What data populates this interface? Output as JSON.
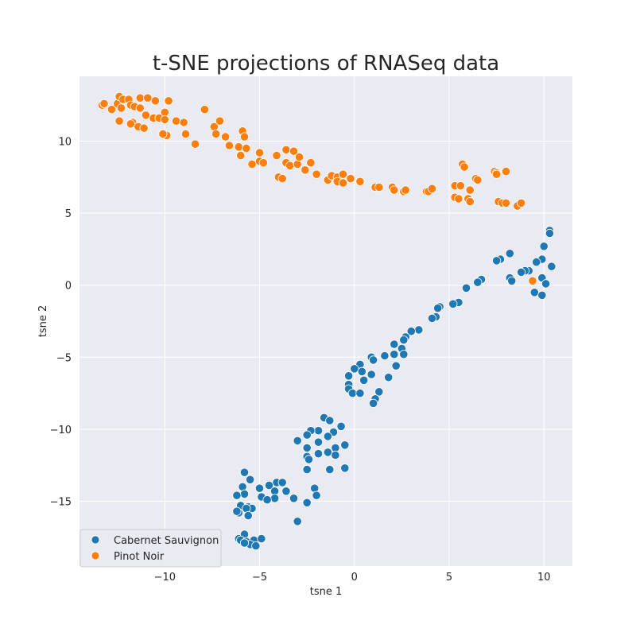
{
  "chart_data": {
    "type": "scatter",
    "title": "t-SNE projections of RNASeq data",
    "xlabel": "tsne 1",
    "ylabel": "tsne 2",
    "xlim": [
      -14.5,
      11.5
    ],
    "ylim": [
      -19.5,
      14.5
    ],
    "xticks": [
      -10,
      -5,
      0,
      5,
      10
    ],
    "yticks": [
      -15,
      -10,
      -5,
      0,
      5,
      10
    ],
    "xtick_labels": [
      "−10",
      "−5",
      "0",
      "5",
      "10"
    ],
    "ytick_labels": [
      "−15",
      "−10",
      "−5",
      "0",
      "5",
      "10"
    ],
    "grid": true,
    "legend_position": "lower-left",
    "background": "#eaeaf2",
    "series": [
      {
        "name": "Cabernet Sauvignon",
        "color": "#1f77b4",
        "points": [
          [
            10.3,
            3.8
          ],
          [
            10.3,
            3.6
          ],
          [
            10.0,
            2.7
          ],
          [
            9.9,
            1.8
          ],
          [
            9.6,
            1.6
          ],
          [
            10.4,
            1.3
          ],
          [
            8.2,
            2.2
          ],
          [
            7.7,
            1.8
          ],
          [
            7.5,
            1.7
          ],
          [
            9.2,
            1.0
          ],
          [
            9.0,
            1.0
          ],
          [
            8.8,
            0.9
          ],
          [
            8.2,
            0.5
          ],
          [
            8.3,
            0.3
          ],
          [
            9.9,
            0.5
          ],
          [
            10.1,
            0.1
          ],
          [
            9.5,
            -0.5
          ],
          [
            9.9,
            -0.7
          ],
          [
            6.7,
            0.4
          ],
          [
            6.5,
            0.2
          ],
          [
            5.9,
            -0.2
          ],
          [
            5.5,
            -1.2
          ],
          [
            5.2,
            -1.3
          ],
          [
            4.5,
            -1.5
          ],
          [
            4.4,
            -1.6
          ],
          [
            4.3,
            -2.2
          ],
          [
            4.1,
            -2.3
          ],
          [
            3.4,
            -3.1
          ],
          [
            3.0,
            -3.2
          ],
          [
            2.7,
            -3.6
          ],
          [
            2.6,
            -3.8
          ],
          [
            2.1,
            -4.1
          ],
          [
            2.5,
            -4.4
          ],
          [
            2.6,
            -4.8
          ],
          [
            2.1,
            -4.8
          ],
          [
            2.2,
            -5.6
          ],
          [
            1.6,
            -4.9
          ],
          [
            0.9,
            -5.0
          ],
          [
            1.0,
            -5.2
          ],
          [
            0.3,
            -5.5
          ],
          [
            0.0,
            -5.8
          ],
          [
            0.4,
            -6.0
          ],
          [
            0.9,
            -6.2
          ],
          [
            -0.3,
            -6.3
          ],
          [
            0.5,
            -6.6
          ],
          [
            -0.3,
            -6.9
          ],
          [
            -0.3,
            -7.2
          ],
          [
            -0.1,
            -7.5
          ],
          [
            0.3,
            -7.5
          ],
          [
            1.8,
            -6.4
          ],
          [
            1.3,
            -7.4
          ],
          [
            1.1,
            -7.9
          ],
          [
            1.0,
            -8.2
          ],
          [
            -1.6,
            -9.2
          ],
          [
            -1.3,
            -9.4
          ],
          [
            -0.7,
            -9.8
          ],
          [
            -1.1,
            -10.2
          ],
          [
            -1.9,
            -10.1
          ],
          [
            -2.3,
            -10.1
          ],
          [
            -2.5,
            -10.4
          ],
          [
            -1.4,
            -10.5
          ],
          [
            -3.0,
            -10.8
          ],
          [
            -1.9,
            -10.9
          ],
          [
            -0.5,
            -11.1
          ],
          [
            -1.0,
            -11.3
          ],
          [
            -2.5,
            -11.3
          ],
          [
            -1.4,
            -11.6
          ],
          [
            -1.9,
            -11.7
          ],
          [
            -2.5,
            -11.9
          ],
          [
            -1.0,
            -11.8
          ],
          [
            -2.4,
            -12.1
          ],
          [
            -2.5,
            -12.8
          ],
          [
            -1.3,
            -12.8
          ],
          [
            -0.5,
            -12.7
          ],
          [
            -5.8,
            -13.0
          ],
          [
            -5.5,
            -13.5
          ],
          [
            -4.1,
            -13.7
          ],
          [
            -3.8,
            -13.7
          ],
          [
            -4.5,
            -13.9
          ],
          [
            -5.0,
            -14.1
          ],
          [
            -5.9,
            -14.0
          ],
          [
            -2.1,
            -14.1
          ],
          [
            -4.2,
            -14.3
          ],
          [
            -3.6,
            -14.3
          ],
          [
            -5.8,
            -14.5
          ],
          [
            -6.2,
            -14.6
          ],
          [
            -4.9,
            -14.7
          ],
          [
            -4.2,
            -14.8
          ],
          [
            -4.6,
            -14.9
          ],
          [
            -3.2,
            -14.8
          ],
          [
            -2.0,
            -14.6
          ],
          [
            -2.5,
            -15.1
          ],
          [
            -6.0,
            -15.3
          ],
          [
            -5.6,
            -15.4
          ],
          [
            -5.4,
            -15.5
          ],
          [
            -5.7,
            -15.5
          ],
          [
            -6.1,
            -15.8
          ],
          [
            -6.2,
            -15.7
          ],
          [
            -5.6,
            -16.0
          ],
          [
            -3.0,
            -16.4
          ],
          [
            -6.1,
            -17.6
          ],
          [
            -5.8,
            -17.3
          ],
          [
            -6.0,
            -17.7
          ],
          [
            -5.7,
            -17.8
          ],
          [
            -5.3,
            -17.7
          ],
          [
            -4.9,
            -17.6
          ],
          [
            -5.5,
            -18.0
          ],
          [
            -5.2,
            -18.1
          ],
          [
            -5.8,
            -17.9
          ]
        ]
      },
      {
        "name": "Pinot Noir",
        "color": "#ff7f0e",
        "points": [
          [
            -13.3,
            12.5
          ],
          [
            -13.2,
            12.6
          ],
          [
            -12.8,
            12.2
          ],
          [
            -12.5,
            12.6
          ],
          [
            -12.4,
            13.1
          ],
          [
            -12.2,
            12.9
          ],
          [
            -12.3,
            12.3
          ],
          [
            -11.9,
            12.9
          ],
          [
            -11.8,
            12.5
          ],
          [
            -11.6,
            12.4
          ],
          [
            -11.7,
            11.3
          ],
          [
            -11.8,
            11.2
          ],
          [
            -11.4,
            11.0
          ],
          [
            -11.3,
            13.0
          ],
          [
            -11.3,
            12.3
          ],
          [
            -10.9,
            13.0
          ],
          [
            -11.0,
            11.8
          ],
          [
            -11.1,
            10.9
          ],
          [
            -10.6,
            11.6
          ],
          [
            -10.5,
            12.8
          ],
          [
            -10.3,
            11.6
          ],
          [
            -10.0,
            12.0
          ],
          [
            -10.0,
            11.5
          ],
          [
            -9.8,
            12.8
          ],
          [
            -9.9,
            10.4
          ],
          [
            -10.1,
            10.5
          ],
          [
            -12.4,
            11.4
          ],
          [
            -9.4,
            11.4
          ],
          [
            -9.0,
            11.3
          ],
          [
            -8.9,
            10.5
          ],
          [
            -8.4,
            9.8
          ],
          [
            -7.9,
            12.2
          ],
          [
            -7.4,
            11.0
          ],
          [
            -7.3,
            10.5
          ],
          [
            -7.1,
            11.4
          ],
          [
            -6.8,
            10.3
          ],
          [
            -6.6,
            9.7
          ],
          [
            -6.1,
            9.6
          ],
          [
            -6.0,
            9.0
          ],
          [
            -5.9,
            10.7
          ],
          [
            -5.8,
            10.3
          ],
          [
            -5.7,
            9.5
          ],
          [
            -5.4,
            8.4
          ],
          [
            -5.0,
            9.2
          ],
          [
            -5.0,
            8.6
          ],
          [
            -4.8,
            8.5
          ],
          [
            -4.1,
            9.0
          ],
          [
            -4.0,
            7.5
          ],
          [
            -3.8,
            7.4
          ],
          [
            -3.6,
            9.4
          ],
          [
            -3.6,
            8.5
          ],
          [
            -3.4,
            8.3
          ],
          [
            -3.2,
            9.3
          ],
          [
            -3.0,
            8.4
          ],
          [
            -2.9,
            8.9
          ],
          [
            -2.6,
            8.0
          ],
          [
            -2.3,
            8.5
          ],
          [
            -2.0,
            7.7
          ],
          [
            -1.4,
            7.3
          ],
          [
            -1.2,
            7.6
          ],
          [
            -0.9,
            7.5
          ],
          [
            -0.9,
            7.2
          ],
          [
            -0.6,
            7.1
          ],
          [
            -0.6,
            7.7
          ],
          [
            -0.2,
            7.4
          ],
          [
            0.3,
            7.2
          ],
          [
            1.1,
            6.8
          ],
          [
            1.3,
            6.8
          ],
          [
            2.0,
            6.8
          ],
          [
            2.1,
            6.6
          ],
          [
            2.6,
            6.5
          ],
          [
            2.7,
            6.6
          ],
          [
            3.8,
            6.5
          ],
          [
            3.9,
            6.5
          ],
          [
            4.1,
            6.7
          ],
          [
            5.3,
            6.9
          ],
          [
            5.3,
            6.1
          ],
          [
            5.6,
            6.9
          ],
          [
            5.5,
            6.0
          ],
          [
            5.7,
            8.4
          ],
          [
            5.8,
            8.2
          ],
          [
            6.1,
            6.6
          ],
          [
            6.0,
            6.0
          ],
          [
            6.1,
            5.8
          ],
          [
            6.4,
            7.4
          ],
          [
            6.5,
            7.3
          ],
          [
            7.4,
            7.9
          ],
          [
            7.5,
            7.8
          ],
          [
            7.5,
            7.7
          ],
          [
            7.6,
            5.8
          ],
          [
            7.8,
            5.7
          ],
          [
            8.0,
            7.9
          ],
          [
            8.0,
            5.7
          ],
          [
            8.6,
            5.5
          ],
          [
            8.8,
            5.7
          ],
          [
            9.4,
            0.3
          ]
        ]
      }
    ]
  }
}
